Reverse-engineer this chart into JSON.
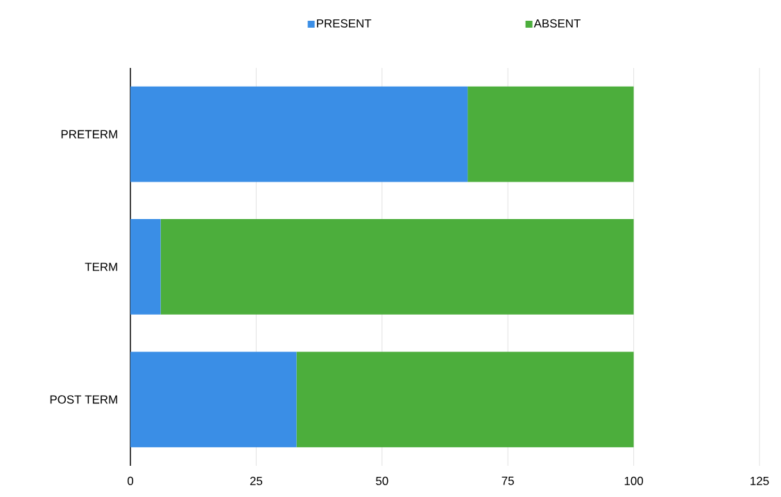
{
  "chart_data": {
    "type": "bar",
    "orientation": "horizontal",
    "stacked": true,
    "categories": [
      "PRETERM",
      "TERM",
      "POST TERM"
    ],
    "series": [
      {
        "name": "PRESENT",
        "color": "#3a8ee6",
        "values": [
          67,
          6,
          33
        ]
      },
      {
        "name": "ABSENT",
        "color": "#4cae3c",
        "values": [
          33,
          94,
          67
        ]
      }
    ],
    "xlim": [
      0,
      125
    ],
    "xticks": [
      0,
      25,
      50,
      75,
      100,
      125
    ],
    "grid": "x",
    "legend": "top"
  }
}
